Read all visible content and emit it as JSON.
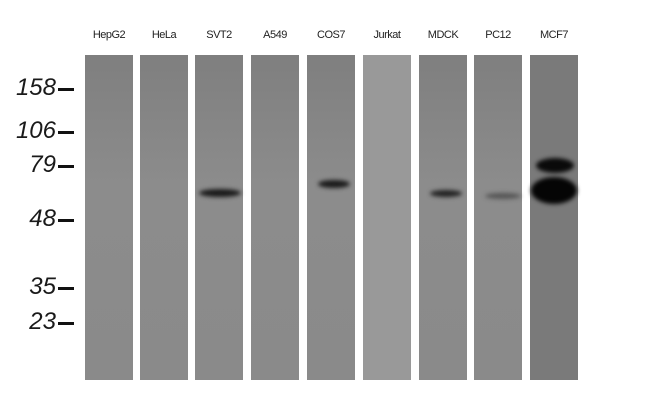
{
  "lanes": [
    "HepG2",
    "HeLa",
    "SVT2",
    "A549",
    "COS7",
    "Jurkat",
    "MDCK",
    "PC12",
    "MCF7"
  ],
  "markers": [
    "158",
    "106",
    "79",
    "48",
    "35",
    "23"
  ],
  "band_color": "#111111",
  "membrane_color": "#8a8a8a"
}
